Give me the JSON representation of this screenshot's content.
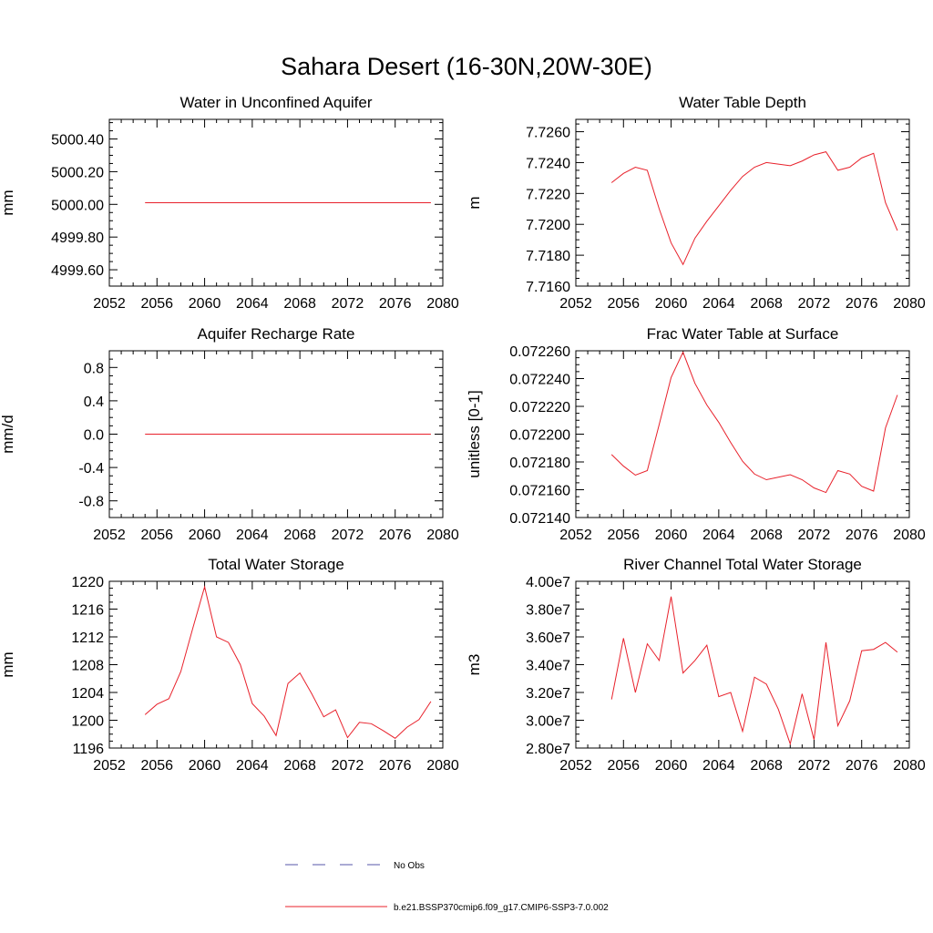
{
  "figure": {
    "title": "Sahara Desert (16-30N,20W-30E)"
  },
  "legend": {
    "placement": "bottom",
    "entries": [
      {
        "label": "No Obs",
        "color": "#5555aa",
        "style": "dashed"
      },
      {
        "label": "b.e21.BSSP370cmip6.f09_g17.CMIP6-SSP3-7.0.002",
        "color": "#e8212b",
        "style": "solid"
      }
    ]
  },
  "chart_data": [
    {
      "type": "line",
      "title": "Water in Unconfined Aquifer",
      "ylabel": "mm",
      "xlim": [
        2052,
        2080
      ],
      "ylim": [
        4999.5,
        5000.52
      ],
      "xticks": [
        "2052",
        "2056",
        "2060",
        "2064",
        "2068",
        "2072",
        "2076",
        "2080"
      ],
      "yticks": [
        {
          "value": 4999.6,
          "label": "4999.60"
        },
        {
          "value": 4999.8,
          "label": "4999.80"
        },
        {
          "value": 5000.0,
          "label": "5000.00"
        },
        {
          "value": 5000.2,
          "label": "5000.20"
        },
        {
          "value": 5000.4,
          "label": "5000.40"
        }
      ],
      "series": [
        {
          "color": "#e8212b",
          "x": [
            2055,
            2056,
            2057,
            2058,
            2059,
            2060,
            2061,
            2062,
            2063,
            2064,
            2065,
            2066,
            2067,
            2068,
            2069,
            2070,
            2071,
            2072,
            2073,
            2074,
            2075,
            2076,
            2077,
            2078,
            2079
          ],
          "y": [
            5000.01,
            5000.01,
            5000.01,
            5000.01,
            5000.01,
            5000.01,
            5000.01,
            5000.01,
            5000.01,
            5000.01,
            5000.01,
            5000.01,
            5000.01,
            5000.01,
            5000.01,
            5000.01,
            5000.01,
            5000.01,
            5000.01,
            5000.01,
            5000.01,
            5000.01,
            5000.01,
            5000.01,
            5000.01
          ]
        }
      ]
    },
    {
      "type": "line",
      "title": "Water Table Depth",
      "ylabel": "m",
      "xlim": [
        2052,
        2080
      ],
      "ylim": [
        7.716,
        7.7268
      ],
      "xticks": [
        "2052",
        "2056",
        "2060",
        "2064",
        "2068",
        "2072",
        "2076",
        "2080"
      ],
      "yticks": [
        {
          "value": 7.716,
          "label": "7.7160"
        },
        {
          "value": 7.718,
          "label": "7.7180"
        },
        {
          "value": 7.72,
          "label": "7.7200"
        },
        {
          "value": 7.722,
          "label": "7.7220"
        },
        {
          "value": 7.724,
          "label": "7.7240"
        },
        {
          "value": 7.726,
          "label": "7.7260"
        }
      ],
      "series": [
        {
          "color": "#e8212b",
          "x": [
            2055,
            2056,
            2057,
            2058,
            2059,
            2060,
            2061,
            2062,
            2063,
            2064,
            2065,
            2066,
            2067,
            2068,
            2069,
            2070,
            2071,
            2072,
            2073,
            2074,
            2075,
            2076,
            2077,
            2078,
            2079
          ],
          "y": [
            7.7227,
            7.7233,
            7.7237,
            7.7235,
            7.721,
            7.7188,
            7.7174,
            7.7191,
            7.7202,
            7.7212,
            7.7222,
            7.7231,
            7.7237,
            7.724,
            7.7239,
            7.7238,
            7.7241,
            7.7245,
            7.7247,
            7.7235,
            7.7237,
            7.7243,
            7.7246,
            7.7214,
            7.7196
          ]
        }
      ]
    },
    {
      "type": "line",
      "title": "Aquifer Recharge Rate",
      "ylabel": "mm/d",
      "xlim": [
        2052,
        2080
      ],
      "ylim": [
        -1.0,
        1.0
      ],
      "xticks": [
        "2052",
        "2056",
        "2060",
        "2064",
        "2068",
        "2072",
        "2076",
        "2080"
      ],
      "yticks": [
        {
          "value": -0.8,
          "label": "-0.8"
        },
        {
          "value": -0.4,
          "label": "-0.4"
        },
        {
          "value": 0.0,
          "label": "0.0"
        },
        {
          "value": 0.4,
          "label": "0.4"
        },
        {
          "value": 0.8,
          "label": "0.8"
        }
      ],
      "series": [
        {
          "color": "#e8212b",
          "x": [
            2055,
            2056,
            2057,
            2058,
            2059,
            2060,
            2061,
            2062,
            2063,
            2064,
            2065,
            2066,
            2067,
            2068,
            2069,
            2070,
            2071,
            2072,
            2073,
            2074,
            2075,
            2076,
            2077,
            2078,
            2079
          ],
          "y": [
            0,
            0,
            0,
            0,
            0,
            0,
            0,
            0,
            0,
            0,
            0,
            0,
            0,
            0,
            0,
            0,
            0,
            0,
            0,
            0,
            0,
            0,
            0,
            0,
            0
          ]
        }
      ]
    },
    {
      "type": "line",
      "title": "Frac Water Table at Surface",
      "ylabel": "unitless [0-1]",
      "xlim": [
        2052,
        2080
      ],
      "ylim": [
        0.07214,
        0.07226
      ],
      "xticks": [
        "2052",
        "2056",
        "2060",
        "2064",
        "2068",
        "2072",
        "2076",
        "2080"
      ],
      "yticks": [
        {
          "value": 0.07214,
          "label": "0.072140"
        },
        {
          "value": 0.07216,
          "label": "0.072160"
        },
        {
          "value": 0.07218,
          "label": "0.072180"
        },
        {
          "value": 0.0722,
          "label": "0.072200"
        },
        {
          "value": 0.07222,
          "label": "0.072220"
        },
        {
          "value": 0.07224,
          "label": "0.072240"
        },
        {
          "value": 0.07226,
          "label": "0.072260"
        }
      ],
      "series": [
        {
          "color": "#e8212b",
          "x": [
            2055,
            2056,
            2057,
            2058,
            2059,
            2060,
            2061,
            2062,
            2063,
            2064,
            2065,
            2066,
            2067,
            2068,
            2069,
            2070,
            2071,
            2072,
            2073,
            2074,
            2075,
            2076,
            2077,
            2078,
            2079
          ],
          "y": [
            0.0721853,
            0.072177,
            0.0721705,
            0.0721738,
            0.072207,
            0.0722408,
            0.072259,
            0.0722366,
            0.072221,
            0.0722085,
            0.072194,
            0.0721805,
            0.0721713,
            0.0721672,
            0.072169,
            0.0721708,
            0.0721672,
            0.0721613,
            0.072158,
            0.0721738,
            0.0721713,
            0.0721625,
            0.072159,
            0.0722045,
            0.0722282
          ]
        }
      ]
    },
    {
      "type": "line",
      "title": "Total Water Storage",
      "ylabel": "mm",
      "xlim": [
        2052,
        2080
      ],
      "ylim": [
        1196,
        1220
      ],
      "xticks": [
        "2052",
        "2056",
        "2060",
        "2064",
        "2068",
        "2072",
        "2076",
        "2080"
      ],
      "yticks": [
        {
          "value": 1196,
          "label": "1196"
        },
        {
          "value": 1200,
          "label": "1200"
        },
        {
          "value": 1204,
          "label": "1204"
        },
        {
          "value": 1208,
          "label": "1208"
        },
        {
          "value": 1212,
          "label": "1212"
        },
        {
          "value": 1216,
          "label": "1216"
        },
        {
          "value": 1220,
          "label": "1220"
        }
      ],
      "series": [
        {
          "color": "#e8212b",
          "x": [
            2055,
            2056,
            2057,
            2058,
            2059,
            2060,
            2061,
            2062,
            2063,
            2064,
            2065,
            2066,
            2067,
            2068,
            2069,
            2070,
            2071,
            2072,
            2073,
            2074,
            2075,
            2076,
            2077,
            2078,
            2079
          ],
          "y": [
            1200.8,
            1202.3,
            1203.1,
            1207.0,
            1213.2,
            1219.2,
            1212.0,
            1211.2,
            1208.0,
            1202.4,
            1200.6,
            1197.8,
            1205.3,
            1206.8,
            1203.8,
            1200.5,
            1201.5,
            1197.5,
            1199.7,
            1199.5,
            1198.5,
            1197.4,
            1199.0,
            1200.1,
            1202.7
          ]
        }
      ]
    },
    {
      "type": "line",
      "title": "River Channel Total Water Storage",
      "ylabel": "m3",
      "xlim": [
        2052,
        2080
      ],
      "ylim": [
        28000000,
        40000000
      ],
      "xticks": [
        "2052",
        "2056",
        "2060",
        "2064",
        "2068",
        "2072",
        "2076",
        "2080"
      ],
      "yticks": [
        {
          "value": 28000000,
          "label": "2.80e7"
        },
        {
          "value": 30000000,
          "label": "3.00e7"
        },
        {
          "value": 32000000,
          "label": "3.20e7"
        },
        {
          "value": 34000000,
          "label": "3.40e7"
        },
        {
          "value": 36000000,
          "label": "3.60e7"
        },
        {
          "value": 38000000,
          "label": "3.80e7"
        },
        {
          "value": 40000000,
          "label": "4.00e7"
        }
      ],
      "series": [
        {
          "color": "#e8212b",
          "x": [
            2055,
            2056,
            2057,
            2058,
            2059,
            2060,
            2061,
            2062,
            2063,
            2064,
            2065,
            2066,
            2067,
            2068,
            2069,
            2070,
            2071,
            2072,
            2073,
            2074,
            2075,
            2076,
            2077,
            2078,
            2079
          ],
          "y": [
            31500000,
            35900000,
            32000000,
            35500000,
            34300000,
            38900000,
            33400000,
            34300000,
            35400000,
            31700000,
            32000000,
            29200000,
            33100000,
            32600000,
            30800000,
            28300000,
            31900000,
            28600000,
            35600000,
            29600000,
            31400000,
            35000000,
            35100000,
            35600000,
            34900000
          ]
        }
      ]
    }
  ]
}
